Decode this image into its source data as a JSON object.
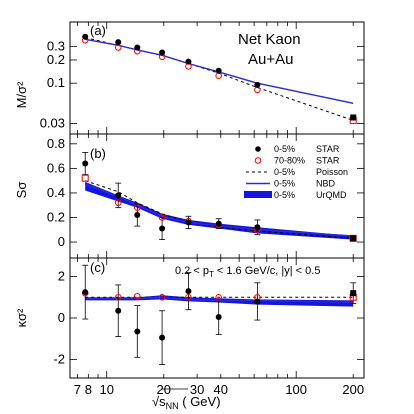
{
  "chart_data": [
    {
      "panel": "(a)",
      "type": "scatter",
      "ylabel": "M/σ²",
      "yscale": "log",
      "ylim": [
        0.022,
        0.62
      ],
      "yticks": [
        {
          "v": 0.03,
          "t": "0.03"
        },
        {
          "v": 0.1,
          "t": "0.1"
        },
        {
          "v": 0.2,
          "t": "0.2"
        },
        {
          "v": 0.3,
          "t": "0.3"
        }
      ],
      "texts": [
        "Net Kaon",
        "Au+Au"
      ],
      "series": [
        {
          "name": "0-5% STAR",
          "x": [
            7.7,
            11.5,
            14.5,
            19.6,
            27,
            39,
            62.4,
            200
          ],
          "y": [
            0.4,
            0.34,
            0.29,
            0.25,
            0.19,
            0.145,
            0.095,
            0.036
          ]
        },
        {
          "name": "70-80% STAR",
          "x": [
            7.7,
            11.5,
            14.5,
            19.6,
            27,
            39,
            62.4,
            200
          ],
          "y": [
            0.36,
            0.29,
            0.26,
            0.22,
            0.165,
            0.125,
            0.082,
            0.033
          ]
        },
        {
          "name": "0-5% Poisson",
          "x": [
            7.7,
            11.5,
            14.5,
            19.6,
            27,
            39,
            62.4,
            200
          ],
          "y": [
            0.39,
            0.31,
            0.27,
            0.23,
            0.18,
            0.135,
            0.088,
            0.033
          ]
        },
        {
          "name": "0-5% NBD",
          "x": [
            7.7,
            11.5,
            14.5,
            19.6,
            27,
            39,
            62.4,
            200
          ],
          "y": [
            0.37,
            0.31,
            0.27,
            0.23,
            0.18,
            0.14,
            0.1,
            0.055
          ]
        }
      ]
    },
    {
      "panel": "(b)",
      "type": "scatter",
      "ylabel": "Sσ",
      "ylim": [
        -0.13,
        0.88
      ],
      "yticks": [
        {
          "v": 0,
          "t": "0"
        },
        {
          "v": 0.2,
          "t": "0.2"
        },
        {
          "v": 0.4,
          "t": "0.4"
        },
        {
          "v": 0.6,
          "t": "0.6"
        },
        {
          "v": 0.8,
          "t": "0.8"
        }
      ],
      "legend": [
        "0-5% STAR",
        "70-80% STAR",
        "0-5% Poisson",
        "0-5% NBD",
        "0-5% UrQMD"
      ],
      "series": [
        {
          "name": "0-5% STAR",
          "x": [
            7.7,
            11.5,
            14.5,
            19.6,
            27,
            39,
            62.4,
            200
          ],
          "y": [
            0.64,
            0.38,
            0.22,
            0.11,
            0.16,
            0.15,
            0.12,
            0.03
          ],
          "yerr": [
            0.09,
            0.1,
            0.09,
            0.09,
            0.05,
            0.04,
            0.06,
            0.02
          ]
        },
        {
          "name": "70-80% STAR",
          "x": [
            7.7,
            11.5,
            14.5,
            19.6,
            27,
            39,
            62.4,
            200
          ],
          "y": [
            0.52,
            0.32,
            0.28,
            0.2,
            0.17,
            0.14,
            0.1,
            0.03
          ]
        },
        {
          "name": "0-5% Poisson",
          "x": [
            7.7,
            11.5,
            14.5,
            19.6,
            27,
            39,
            62.4,
            200
          ],
          "y": [
            0.5,
            0.41,
            0.32,
            0.23,
            0.16,
            0.12,
            0.09,
            0.03
          ]
        },
        {
          "name": "0-5% NBD",
          "x": [
            7.7,
            11.5,
            14.5,
            19.6,
            27,
            39,
            62.4,
            200
          ],
          "y": [
            0.47,
            0.37,
            0.3,
            0.21,
            0.16,
            0.13,
            0.1,
            0.05
          ]
        },
        {
          "name": "0-5% UrQMD",
          "x": [
            7.7,
            11.5,
            14.5,
            19.6,
            27,
            39,
            62.4,
            200
          ],
          "ylow": [
            0.42,
            0.33,
            0.28,
            0.19,
            0.14,
            0.11,
            0.07,
            0.02
          ],
          "yhigh": [
            0.49,
            0.38,
            0.32,
            0.23,
            0.18,
            0.15,
            0.12,
            0.05
          ]
        }
      ]
    },
    {
      "panel": "(c)",
      "type": "scatter",
      "ylabel": "κσ²",
      "ylim": [
        -2.9,
        2.9
      ],
      "yticks": [
        {
          "v": -2,
          "t": "-2"
        },
        {
          "v": 0,
          "t": "0"
        },
        {
          "v": 2,
          "t": "2"
        }
      ],
      "texts": [
        "0.2 < p_T < 1.6 GeV/c, |y| < 0.5"
      ],
      "xlabel": "√s_NN (GeV)",
      "xscale": "log",
      "xlim": [
        6.4,
        228
      ],
      "xticks": [
        {
          "v": 7,
          "t": "7"
        },
        {
          "v": 8,
          "t": "8"
        },
        {
          "v": 10,
          "t": "10"
        },
        {
          "v": 20,
          "t": "20"
        },
        {
          "v": 30,
          "t": "30"
        },
        {
          "v": 40,
          "t": "40"
        },
        {
          "v": 100,
          "t": "100"
        },
        {
          "v": 200,
          "t": "200"
        }
      ],
      "series": [
        {
          "name": "0-5% STAR",
          "x": [
            7.7,
            11.5,
            14.5,
            19.6,
            27,
            39,
            62.4,
            200
          ],
          "y": [
            1.25,
            0.35,
            -0.65,
            -0.95,
            1.3,
            0.05,
            0.8,
            1.2
          ],
          "yerr": [
            1.3,
            1.25,
            1.25,
            1.3,
            0.9,
            0.85,
            0.9,
            0.5
          ]
        },
        {
          "name": "70-80% STAR",
          "x": [
            7.7,
            11.5,
            14.5,
            19.6,
            27,
            39,
            62.4,
            200
          ],
          "y": [
            1.2,
            1.0,
            1.05,
            1.0,
            1.0,
            1.0,
            1.0,
            1.0
          ]
        },
        {
          "name": "0-5% Poisson",
          "x": [
            7.7,
            11.5,
            14.5,
            19.6,
            27,
            39,
            62.4,
            200
          ],
          "y": [
            1,
            1,
            1,
            1,
            1,
            1,
            1,
            1
          ]
        },
        {
          "name": "0-5% NBD",
          "x": [
            7.7,
            11.5,
            14.5,
            19.6,
            27,
            39,
            62.4,
            200
          ],
          "y": [
            0.95,
            0.95,
            0.95,
            1.0,
            0.9,
            0.85,
            0.85,
            0.75
          ]
        },
        {
          "name": "0-5% UrQMD",
          "x": [
            7.7,
            11.5,
            14.5,
            19.6,
            27,
            39,
            62.4,
            200
          ],
          "ylow": [
            0.85,
            0.85,
            0.85,
            0.9,
            0.8,
            0.75,
            0.65,
            0.55
          ],
          "yhigh": [
            1.0,
            1.0,
            1.0,
            1.1,
            1.0,
            0.95,
            0.9,
            0.85
          ]
        }
      ]
    }
  ],
  "colors": {
    "star_central": "#000000",
    "star_peripheral": "#ff0000",
    "poisson": "#000000",
    "nbd": "#2a2ad8",
    "urqmd": "#1515e0"
  }
}
